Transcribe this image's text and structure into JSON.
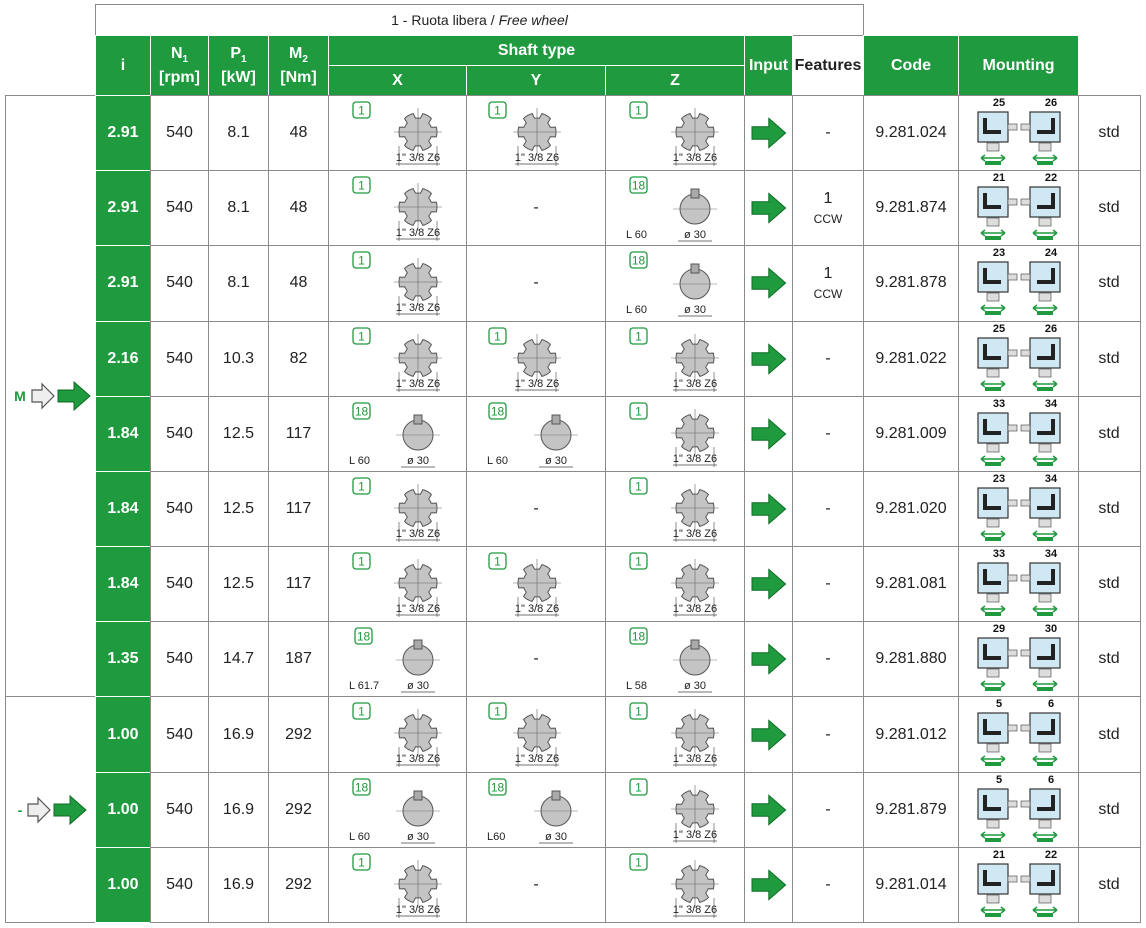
{
  "title": "1 - Ruota libera /",
  "title_en": "Free wheel",
  "headers": {
    "i": "i",
    "n1": {
      "symbol": "N",
      "sub": "1",
      "unit": "[rpm]"
    },
    "p1": {
      "symbol": "P",
      "sub": "1",
      "unit": "[kW]"
    },
    "m2": {
      "symbol": "M",
      "sub": "2",
      "unit": "[Nm]"
    },
    "shaft_type": "Shaft type",
    "x": "X",
    "y": "Y",
    "z": "Z",
    "input": "Input",
    "features": "Features",
    "code": "Code",
    "mounting": "Mounting"
  },
  "groups": [
    {
      "label": "M",
      "rows": [
        {
          "i": "2.91",
          "n1": "540",
          "p1": "8.1",
          "m2": "48",
          "x": {
            "badge": "1",
            "label": "1\" 3/8 Z6"
          },
          "y": {
            "badge": "1",
            "label": "1\" 3/8 Z6"
          },
          "z": {
            "badge": "1",
            "label": "1\" 3/8 Z6"
          },
          "features": "-",
          "code": "9.281.024",
          "mounting": [
            "25",
            "26"
          ],
          "note": "std"
        },
        {
          "i": "2.91",
          "n1": "540",
          "p1": "8.1",
          "m2": "48",
          "x": {
            "badge": "1",
            "label": "1\" 3/8 Z6"
          },
          "y": "-",
          "z": {
            "badge": "18",
            "length": "L 60",
            "diameter": "ø 30"
          },
          "features": {
            "value": "1",
            "dir": "CCW"
          },
          "code": "9.281.874",
          "mounting": [
            "21",
            "22"
          ],
          "note": "std"
        },
        {
          "i": "2.91",
          "n1": "540",
          "p1": "8.1",
          "m2": "48",
          "x": {
            "badge": "1",
            "label": "1\" 3/8 Z6"
          },
          "y": "-",
          "z": {
            "badge": "18",
            "length": "L 60",
            "diameter": "ø 30"
          },
          "features": {
            "value": "1",
            "dir": "CCW"
          },
          "code": "9.281.878",
          "mounting": [
            "23",
            "24"
          ],
          "note": "std"
        },
        {
          "i": "2.16",
          "n1": "540",
          "p1": "10.3",
          "m2": "82",
          "x": {
            "badge": "1",
            "label": "1\" 3/8 Z6"
          },
          "y": {
            "badge": "1",
            "label": "1\" 3/8 Z6"
          },
          "z": {
            "badge": "1",
            "label": "1\" 3/8 Z6"
          },
          "features": "-",
          "code": "9.281.022",
          "mounting": [
            "25",
            "26"
          ],
          "note": "std"
        },
        {
          "i": "1.84",
          "n1": "540",
          "p1": "12.5",
          "m2": "117",
          "x": {
            "badge": "18",
            "length": "L 60",
            "diameter": "ø 30"
          },
          "y": {
            "badge": "18",
            "length": "L 60",
            "diameter": "ø 30"
          },
          "z": {
            "badge": "1",
            "label": "1\" 3/8 Z6"
          },
          "features": "-",
          "code": "9.281.009",
          "mounting": [
            "33",
            "34"
          ],
          "note": "std"
        },
        {
          "i": "1.84",
          "n1": "540",
          "p1": "12.5",
          "m2": "117",
          "x": {
            "badge": "1",
            "label": "1\" 3/8 Z6"
          },
          "y": "-",
          "z": {
            "badge": "1",
            "label": "1\" 3/8 Z6"
          },
          "features": "-",
          "code": "9.281.020",
          "mounting": [
            "23",
            "34"
          ],
          "note": "std"
        },
        {
          "i": "1.84",
          "n1": "540",
          "p1": "12.5",
          "m2": "117",
          "x": {
            "badge": "1",
            "label": "1\" 3/8 Z6"
          },
          "y": {
            "badge": "1",
            "label": "1\" 3/8 Z6"
          },
          "z": {
            "badge": "1",
            "label": "1\" 3/8 Z6"
          },
          "features": "-",
          "code": "9.281.081",
          "mounting": [
            "33",
            "34"
          ],
          "note": "std"
        },
        {
          "i": "1.35",
          "n1": "540",
          "p1": "14.7",
          "m2": "187",
          "x": {
            "badge": "18",
            "length": "L 61.7",
            "diameter": "ø 30"
          },
          "y": "-",
          "z": {
            "badge": "18",
            "length": "L 58",
            "diameter": "ø 30"
          },
          "features": "-",
          "code": "9.281.880",
          "mounting": [
            "29",
            "30"
          ],
          "note": "std"
        }
      ]
    },
    {
      "label": "-",
      "rows": [
        {
          "i": "1.00",
          "n1": "540",
          "p1": "16.9",
          "m2": "292",
          "x": {
            "badge": "1",
            "label": "1\" 3/8 Z6"
          },
          "y": {
            "badge": "1",
            "label": "1\" 3/8 Z6"
          },
          "z": {
            "badge": "1",
            "label": "1\" 3/8 Z6"
          },
          "features": "-",
          "code": "9.281.012",
          "mounting": [
            "5",
            "6"
          ],
          "note": "std"
        },
        {
          "i": "1.00",
          "n1": "540",
          "p1": "16.9",
          "m2": "292",
          "x": {
            "badge": "18",
            "length": "L 60",
            "diameter": "ø 30"
          },
          "y": {
            "badge": "18",
            "length": "L60",
            "diameter": "ø 30"
          },
          "z": {
            "badge": "1",
            "label": "1\" 3/8 Z6"
          },
          "features": "-",
          "code": "9.281.879",
          "mounting": [
            "5",
            "6"
          ],
          "note": "std"
        },
        {
          "i": "1.00",
          "n1": "540",
          "p1": "16.9",
          "m2": "292",
          "x": {
            "badge": "1",
            "label": "1\" 3/8 Z6"
          },
          "y": "-",
          "z": {
            "badge": "1",
            "label": "1\" 3/8 Z6"
          },
          "features": "-",
          "code": "9.281.014",
          "mounting": [
            "21",
            "22"
          ],
          "note": "std"
        }
      ]
    }
  ]
}
